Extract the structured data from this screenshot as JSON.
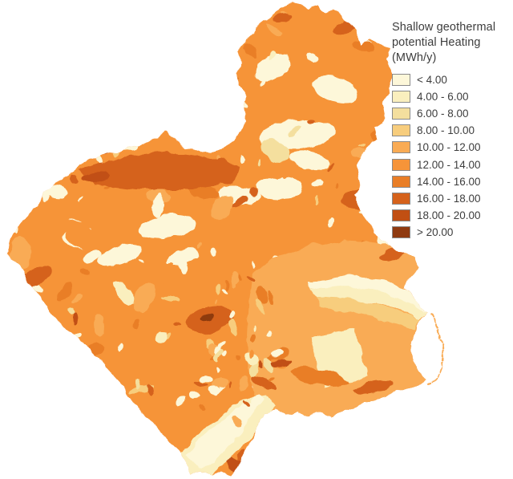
{
  "legend": {
    "title": "Shallow geothermal\npotential Heating\n(MWh/y)",
    "unit": "MWh/y",
    "text_color": "#3D3D3D",
    "swatch_border_color": "#8A8A8A",
    "classes": [
      {
        "label": "< 4.00",
        "color": "#FDF7D9"
      },
      {
        "label": "4.00 - 6.00",
        "color": "#FAEFBE"
      },
      {
        "label": "6.00 - 8.00",
        "color": "#F4DF9E"
      },
      {
        "label": "8.00 - 10.00",
        "color": "#F7CD7D"
      },
      {
        "label": "10.00 - 12.00",
        "color": "#F9AB54"
      },
      {
        "label": "12.00 - 14.00",
        "color": "#F69439"
      },
      {
        "label": "14.00 - 16.00",
        "color": "#E97E27"
      },
      {
        "label": "16.00 - 18.00",
        "color": "#D5621C"
      },
      {
        "label": "18.00 - 20.00",
        "color": "#C14F13"
      },
      {
        "label": "> 20.00",
        "color": "#8F3A10"
      }
    ]
  },
  "map": {
    "sea_color": "#FFFFFF",
    "base_class_index": 5,
    "plain_class_index": 4
  }
}
